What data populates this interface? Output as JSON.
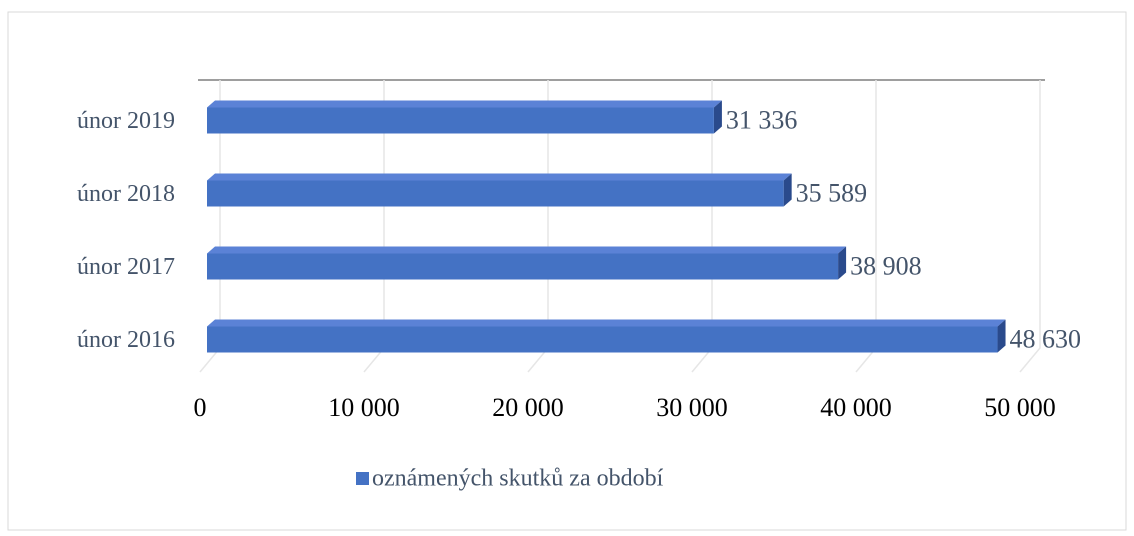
{
  "chart_data": {
    "type": "bar3d_horizontal",
    "categories": [
      "únor 2019",
      "únor 2018",
      "únor 2017",
      "únor 2016"
    ],
    "series": [
      {
        "name": "oznámených skutků za období",
        "color": "#4472c4",
        "values": [
          31336,
          35589,
          38908,
          48630
        ],
        "value_labels": [
          "31 336",
          "35 589",
          "38 908",
          "48 630"
        ]
      }
    ],
    "xlim": [
      0,
      50000
    ],
    "xticks": [
      0,
      {
        "value": 10000,
        "label": "10 000"
      },
      {
        "value": 20000,
        "label": "20 000"
      },
      {
        "value": 30000,
        "label": "30 000"
      },
      {
        "value": 40000,
        "label": "40 000"
      },
      {
        "value": 50000,
        "label": "50 000"
      }
    ],
    "grid": true,
    "legend": "bottom"
  }
}
